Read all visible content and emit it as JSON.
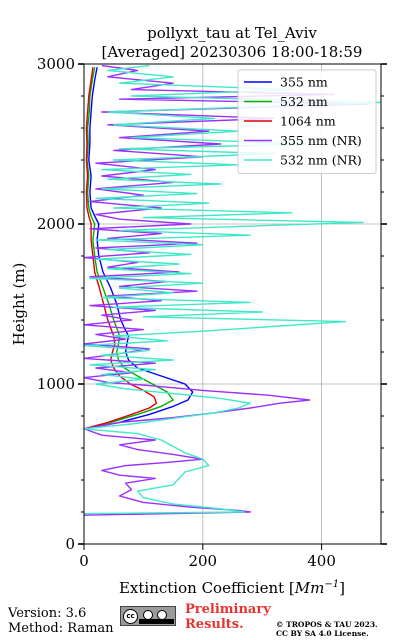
{
  "chart_data": {
    "type": "line",
    "title_line1": "pollyxt_tau at Tel_Aviv",
    "title_line2": "[Averaged] 20230306 18:00-18:59",
    "xlabel_prefix": "Extinction Coefficient [",
    "xlabel_unit": "Mm",
    "xlabel_exp": "−1",
    "xlabel_suffix": "]",
    "ylabel": "Height (m)",
    "xlim": [
      0,
      500
    ],
    "ylim": [
      0,
      3000
    ],
    "xticks": [
      0,
      200,
      400
    ],
    "yticks": [
      0,
      1000,
      2000,
      3000
    ],
    "x_tick_labels": [
      "0",
      "200",
      "400"
    ],
    "y_tick_labels": [
      "0",
      "1000",
      "2000",
      "3000"
    ],
    "grid": true,
    "legend_position": "top-right",
    "series": [
      {
        "name": "355 nm",
        "color": "#0000ff",
        "points": [
          [
            0,
            720
          ],
          [
            60,
            760
          ],
          [
            110,
            810
          ],
          [
            150,
            860
          ],
          [
            175,
            900
          ],
          [
            183,
            950
          ],
          [
            170,
            1000
          ],
          [
            130,
            1050
          ],
          [
            90,
            1100
          ],
          [
            75,
            1150
          ],
          [
            70,
            1200
          ],
          [
            72,
            1250
          ],
          [
            75,
            1300
          ],
          [
            68,
            1350
          ],
          [
            62,
            1400
          ],
          [
            55,
            1500
          ],
          [
            45,
            1600
          ],
          [
            32,
            1700
          ],
          [
            25,
            1800
          ],
          [
            22,
            1900
          ],
          [
            25,
            2000
          ],
          [
            18,
            2050
          ],
          [
            12,
            2100
          ],
          [
            10,
            2200
          ],
          [
            12,
            2300
          ],
          [
            8,
            2400
          ],
          [
            10,
            2500
          ],
          [
            10,
            2600
          ],
          [
            12,
            2700
          ],
          [
            14,
            2800
          ],
          [
            18,
            2900
          ],
          [
            22,
            2980
          ]
        ]
      },
      {
        "name": "532 nm",
        "color": "#00b000",
        "points": [
          [
            0,
            720
          ],
          [
            45,
            760
          ],
          [
            90,
            810
          ],
          [
            130,
            860
          ],
          [
            150,
            900
          ],
          [
            140,
            950
          ],
          [
            115,
            1000
          ],
          [
            90,
            1050
          ],
          [
            68,
            1100
          ],
          [
            58,
            1150
          ],
          [
            55,
            1200
          ],
          [
            58,
            1250
          ],
          [
            60,
            1300
          ],
          [
            55,
            1350
          ],
          [
            50,
            1400
          ],
          [
            42,
            1500
          ],
          [
            32,
            1600
          ],
          [
            22,
            1700
          ],
          [
            18,
            1800
          ],
          [
            15,
            1900
          ],
          [
            18,
            2000
          ],
          [
            12,
            2050
          ],
          [
            8,
            2100
          ],
          [
            6,
            2200
          ],
          [
            8,
            2300
          ],
          [
            5,
            2400
          ],
          [
            7,
            2500
          ],
          [
            6,
            2600
          ],
          [
            9,
            2700
          ],
          [
            10,
            2800
          ],
          [
            14,
            2900
          ],
          [
            18,
            2980
          ]
        ]
      },
      {
        "name": "1064 nm",
        "color": "#e00000",
        "points": [
          [
            0,
            720
          ],
          [
            40,
            760
          ],
          [
            80,
            810
          ],
          [
            110,
            850
          ],
          [
            122,
            880
          ],
          [
            118,
            920
          ],
          [
            100,
            960
          ],
          [
            78,
            1000
          ],
          [
            60,
            1050
          ],
          [
            50,
            1100
          ],
          [
            45,
            1150
          ],
          [
            48,
            1200
          ],
          [
            52,
            1250
          ],
          [
            50,
            1300
          ],
          [
            45,
            1350
          ],
          [
            40,
            1400
          ],
          [
            33,
            1500
          ],
          [
            26,
            1600
          ],
          [
            18,
            1700
          ],
          [
            15,
            1800
          ],
          [
            12,
            1900
          ],
          [
            12,
            2000
          ],
          [
            8,
            2050
          ],
          [
            5,
            2100
          ],
          [
            4,
            2200
          ],
          [
            6,
            2300
          ],
          [
            4,
            2400
          ],
          [
            5,
            2500
          ],
          [
            4,
            2600
          ],
          [
            6,
            2700
          ],
          [
            8,
            2800
          ],
          [
            12,
            2900
          ],
          [
            15,
            2980
          ]
        ]
      },
      {
        "name": "355 nm (NR)",
        "color": "#9b30ff",
        "points": [
          [
            0,
            180
          ],
          [
            280,
            200
          ],
          [
            260,
            210
          ],
          [
            180,
            230
          ],
          [
            100,
            260
          ],
          [
            60,
            300
          ],
          [
            80,
            340
          ],
          [
            70,
            380
          ],
          [
            120,
            410
          ],
          [
            60,
            430
          ],
          [
            30,
            460
          ],
          [
            70,
            490
          ],
          [
            140,
            510
          ],
          [
            200,
            530
          ],
          [
            150,
            560
          ],
          [
            90,
            590
          ],
          [
            60,
            620
          ],
          [
            120,
            650
          ],
          [
            30,
            680
          ],
          [
            0,
            720
          ],
          [
            60,
            760
          ],
          [
            150,
            790
          ],
          [
            220,
            820
          ],
          [
            280,
            850
          ],
          [
            330,
            880
          ],
          [
            380,
            900
          ],
          [
            310,
            930
          ],
          [
            200,
            960
          ],
          [
            110,
            990
          ],
          [
            40,
            1010
          ],
          [
            0,
            1040
          ],
          [
            80,
            1070
          ],
          [
            20,
            1100
          ],
          [
            120,
            1130
          ],
          [
            0,
            1160
          ],
          [
            60,
            1190
          ],
          [
            110,
            1220
          ],
          [
            0,
            1250
          ],
          [
            70,
            1280
          ],
          [
            20,
            1310
          ],
          [
            100,
            1340
          ],
          [
            0,
            1370
          ],
          [
            80,
            1400
          ],
          [
            30,
            1430
          ],
          [
            120,
            1460
          ],
          [
            10,
            1490
          ],
          [
            130,
            1520
          ],
          [
            40,
            1550
          ],
          [
            190,
            1580
          ],
          [
            60,
            1610
          ],
          [
            140,
            1640
          ],
          [
            10,
            1670
          ],
          [
            160,
            1700
          ],
          [
            40,
            1730
          ],
          [
            90,
            1760
          ],
          [
            0,
            1790
          ],
          [
            110,
            1820
          ],
          [
            20,
            1850
          ],
          [
            190,
            1880
          ],
          [
            40,
            1910
          ],
          [
            130,
            1940
          ],
          [
            10,
            1970
          ],
          [
            180,
            2000
          ],
          [
            60,
            2030
          ],
          [
            20,
            2060
          ],
          [
            130,
            2100
          ],
          [
            10,
            2140
          ],
          [
            100,
            2180
          ],
          [
            20,
            2220
          ],
          [
            150,
            2260
          ],
          [
            30,
            2300
          ],
          [
            120,
            2340
          ],
          [
            20,
            2380
          ],
          [
            200,
            2420
          ],
          [
            50,
            2460
          ],
          [
            230,
            2500
          ],
          [
            60,
            2540
          ],
          [
            210,
            2580
          ],
          [
            40,
            2620
          ],
          [
            320,
            2660
          ],
          [
            30,
            2700
          ],
          [
            480,
            2750
          ],
          [
            60,
            2780
          ],
          [
            420,
            2810
          ],
          [
            80,
            2840
          ],
          [
            150,
            2880
          ],
          [
            40,
            2920
          ],
          [
            90,
            2960
          ],
          [
            30,
            2990
          ]
        ]
      },
      {
        "name": "532 nm (NR)",
        "color": "#40e8c8",
        "points": [
          [
            0,
            190
          ],
          [
            270,
            200
          ],
          [
            230,
            220
          ],
          [
            150,
            250
          ],
          [
            100,
            290
          ],
          [
            90,
            330
          ],
          [
            150,
            370
          ],
          [
            160,
            410
          ],
          [
            170,
            450
          ],
          [
            210,
            490
          ],
          [
            200,
            530
          ],
          [
            170,
            570
          ],
          [
            150,
            610
          ],
          [
            130,
            650
          ],
          [
            90,
            690
          ],
          [
            0,
            720
          ],
          [
            80,
            750
          ],
          [
            160,
            790
          ],
          [
            220,
            820
          ],
          [
            260,
            850
          ],
          [
            280,
            880
          ],
          [
            230,
            910
          ],
          [
            150,
            940
          ],
          [
            70,
            970
          ],
          [
            20,
            1000
          ],
          [
            100,
            1030
          ],
          [
            30,
            1060
          ],
          [
            120,
            1090
          ],
          [
            10,
            1120
          ],
          [
            150,
            1150
          ],
          [
            30,
            1180
          ],
          [
            110,
            1210
          ],
          [
            0,
            1240
          ],
          [
            140,
            1270
          ],
          [
            50,
            1300
          ],
          [
            200,
            1330
          ],
          [
            440,
            1390
          ],
          [
            100,
            1420
          ],
          [
            300,
            1450
          ],
          [
            50,
            1480
          ],
          [
            280,
            1510
          ],
          [
            30,
            1540
          ],
          [
            150,
            1570
          ],
          [
            60,
            1600
          ],
          [
            200,
            1630
          ],
          [
            10,
            1660
          ],
          [
            180,
            1690
          ],
          [
            40,
            1720
          ],
          [
            160,
            1750
          ],
          [
            20,
            1780
          ],
          [
            180,
            1810
          ],
          [
            40,
            1840
          ],
          [
            200,
            1870
          ],
          [
            20,
            1900
          ],
          [
            280,
            1930
          ],
          [
            60,
            1960
          ],
          [
            470,
            2010
          ],
          [
            100,
            2040
          ],
          [
            350,
            2070
          ],
          [
            50,
            2100
          ],
          [
            210,
            2130
          ],
          [
            20,
            2160
          ],
          [
            190,
            2190
          ],
          [
            30,
            2220
          ],
          [
            230,
            2250
          ],
          [
            40,
            2280
          ],
          [
            180,
            2310
          ],
          [
            30,
            2340
          ],
          [
            260,
            2370
          ],
          [
            50,
            2400
          ],
          [
            320,
            2440
          ],
          [
            60,
            2470
          ],
          [
            380,
            2500
          ],
          [
            80,
            2540
          ],
          [
            260,
            2580
          ],
          [
            50,
            2620
          ],
          [
            220,
            2660
          ],
          [
            40,
            2700
          ],
          [
            500,
            2760
          ],
          [
            80,
            2800
          ],
          [
            350,
            2840
          ],
          [
            60,
            2880
          ],
          [
            150,
            2920
          ],
          [
            40,
            2960
          ],
          [
            110,
            2990
          ]
        ]
      }
    ]
  },
  "footer": {
    "version": "Version: 3.6",
    "method": "Method: Raman",
    "preliminary_line1": "Preliminary",
    "preliminary_line2": "Results.",
    "copyright_line1": "© TROPOS & TAU 2023.",
    "copyright_line2": "CC BY SA 4.0 License.",
    "badge_cc": "cc",
    "badge_strip": "BY SA"
  }
}
